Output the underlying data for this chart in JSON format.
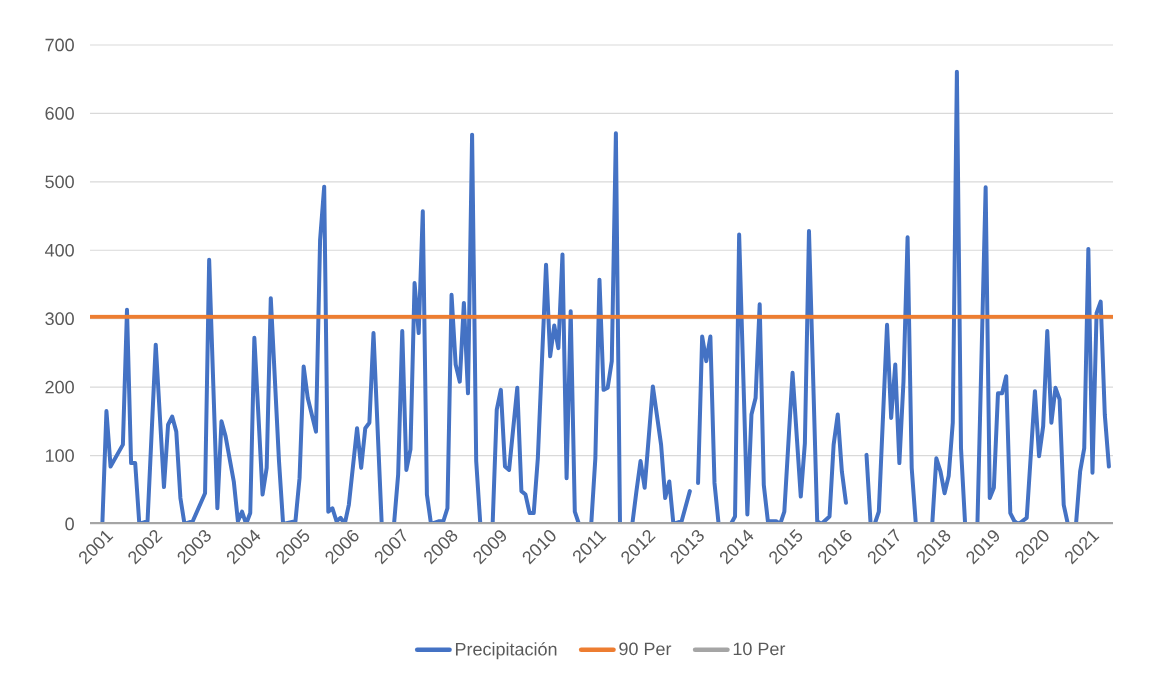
{
  "chart_data": {
    "type": "line",
    "xlim": [
      "2000-10",
      "2021-07"
    ],
    "xticks": [
      "2001",
      "2002",
      "2003",
      "2004",
      "2005",
      "2006",
      "2007",
      "2008",
      "2009",
      "2010",
      "2011",
      "2012",
      "2013",
      "2014",
      "2015",
      "2016",
      "2017",
      "2018",
      "2019",
      "2020",
      "2021"
    ],
    "ylim": [
      0,
      700
    ],
    "yticks": [
      0,
      100,
      200,
      300,
      400,
      500,
      600,
      700
    ],
    "grid": "y",
    "legend": "bottom",
    "series": [
      {
        "name": "Precipitación",
        "color": "#4472c4",
        "x": [
          "2001-01",
          "2001-02",
          "2001-03",
          "2001-06",
          "2001-07",
          "2001-08",
          "2001-09",
          "2001-10",
          "2001-12",
          "2002-02",
          "2002-04",
          "2002-05",
          "2002-06",
          "2002-07",
          "2002-08",
          "2002-09",
          "2002-11",
          "2003-02",
          "2003-03",
          "2003-05",
          "2003-06",
          "2003-07",
          "2003-09",
          "2003-10",
          "2003-11",
          "2003-12",
          "2004-01",
          "2004-02",
          "2004-04",
          "2004-05",
          "2004-06",
          "2004-08",
          "2004-09",
          "2004-12",
          "2005-01",
          "2005-02",
          "2005-03",
          "2005-05",
          "2005-06",
          "2005-07",
          "2005-08",
          "2005-09",
          "2005-10",
          "2005-11",
          "2005-12",
          "2006-01",
          "2006-03",
          "2006-04",
          "2006-05",
          "2006-06",
          "2006-07",
          "2006-09",
          "2006-12",
          "2007-01",
          "2007-02",
          "2007-03",
          "2007-04",
          "2007-05",
          "2007-06",
          "2007-07",
          "2007-08",
          "2007-09",
          "2007-11",
          "2007-12",
          "2008-01",
          "2008-02",
          "2008-03",
          "2008-04",
          "2008-05",
          "2008-06",
          "2008-07",
          "2008-08",
          "2008-09",
          "2008-12",
          "2009-01",
          "2009-02",
          "2009-03",
          "2009-04",
          "2009-06",
          "2009-07",
          "2009-08",
          "2009-09",
          "2009-10",
          "2009-11",
          "2010-01",
          "2010-02",
          "2010-03",
          "2010-04",
          "2010-05",
          "2010-06",
          "2010-07",
          "2010-08",
          "2010-09",
          "2010-12",
          "2011-01",
          "2011-02",
          "2011-03",
          "2011-04",
          "2011-05",
          "2011-06",
          "2011-07",
          "2011-10",
          "2011-11",
          "2011-12",
          "2012-01",
          "2012-03",
          "2012-05",
          "2012-06",
          "2012-07",
          "2012-08",
          "2012-10",
          "2012-12",
          "2013-01",
          "2013-02",
          "2013-03",
          "2013-04",
          "2013-05",
          "2013-06",
          "2013-07",
          "2013-10",
          "2013-11",
          "2013-12",
          "2014-02",
          "2014-03",
          "2014-04",
          "2014-05",
          "2014-06",
          "2014-07",
          "2014-09",
          "2014-10",
          "2014-11",
          "2015-01",
          "2015-03",
          "2015-04",
          "2015-05",
          "2015-07",
          "2015-08",
          "2015-10",
          "2015-11",
          "2015-12",
          "2016-01",
          "2016-02",
          "2016-03",
          "2016-07",
          "2016-08",
          "2016-09",
          "2016-10",
          "2016-12",
          "2017-01",
          "2017-02",
          "2017-03",
          "2017-04",
          "2017-05",
          "2017-06",
          "2017-07",
          "2017-11",
          "2017-12",
          "2018-01",
          "2018-02",
          "2018-03",
          "2018-04",
          "2018-05",
          "2018-06",
          "2018-07",
          "2018-10",
          "2018-12",
          "2019-01",
          "2019-02",
          "2019-03",
          "2019-04",
          "2019-05",
          "2019-06",
          "2019-07",
          "2019-08",
          "2019-10",
          "2019-12",
          "2020-01",
          "2020-02",
          "2020-03",
          "2020-04",
          "2020-05",
          "2020-06",
          "2020-07",
          "2020-08",
          "2020-10",
          "2020-11",
          "2020-12",
          "2021-01",
          "2021-02",
          "2021-03",
          "2021-04",
          "2021-05",
          "2021-06"
        ],
        "values": [
          0,
          165,
          84,
          116,
          313,
          89,
          89,
          0,
          4,
          262,
          54,
          145,
          157,
          135,
          38,
          0,
          4,
          45,
          386,
          23,
          150,
          128,
          62,
          4,
          18,
          0,
          16,
          272,
          43,
          82,
          330,
          92,
          0,
          4,
          67,
          230,
          184,
          135,
          415,
          493,
          18,
          23,
          4,
          9,
          0,
          28,
          140,
          82,
          140,
          148,
          279,
          0,
          0,
          72,
          282,
          79,
          109,
          352,
          279,
          457,
          43,
          0,
          4,
          4,
          23,
          335,
          233,
          208,
          323,
          191,
          569,
          92,
          0,
          0,
          167,
          196,
          84,
          79,
          199,
          48,
          43,
          16,
          16,
          96,
          379,
          245,
          290,
          257,
          394,
          67,
          311,
          18,
          0,
          0,
          96,
          357,
          196,
          199,
          238,
          571,
          0,
          0,
          48,
          92,
          53,
          201,
          116,
          38,
          62,
          0,
          4,
          48,
          null,
          60,
          274,
          238,
          274,
          60,
          0,
          0,
          11,
          423,
          14,
          160,
          184,
          321,
          57,
          4,
          4,
          0,
          18,
          221,
          40,
          118,
          428,
          4,
          0,
          11,
          116,
          160,
          77,
          31,
          null,
          101,
          0,
          0,
          18,
          291,
          155,
          233,
          89,
          208,
          419,
          82,
          0,
          0,
          96,
          77,
          45,
          70,
          148,
          661,
          111,
          0,
          0,
          492,
          38,
          53,
          191,
          191,
          216,
          16,
          4,
          0,
          9,
          194,
          99,
          143,
          282,
          148,
          199,
          182,
          28,
          0,
          0,
          77,
          111,
          402,
          75,
          308,
          325,
          160,
          84
        ]
      },
      {
        "name": "90 Per",
        "color": "#ed7d31",
        "x": [
          "2000-10",
          "2021-07"
        ],
        "values": [
          303,
          303
        ]
      },
      {
        "name": "10 Per",
        "color": "#a5a5a5",
        "x": [
          "2000-10",
          "2021-07"
        ],
        "values": [
          0,
          0
        ]
      }
    ]
  }
}
